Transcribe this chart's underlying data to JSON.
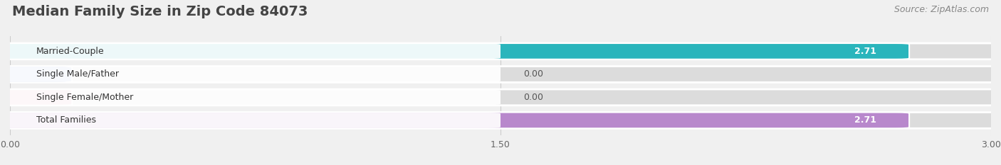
{
  "title": "Median Family Size in Zip Code 84073",
  "source": "Source: ZipAtlas.com",
  "categories": [
    "Married-Couple",
    "Single Male/Father",
    "Single Female/Mother",
    "Total Families"
  ],
  "values": [
    2.71,
    0.0,
    0.0,
    2.71
  ],
  "bar_colors": [
    "#2ab5bc",
    "#a8b8e8",
    "#f0a8b8",
    "#b888cc"
  ],
  "xlim": [
    0,
    3.0
  ],
  "xticks": [
    0.0,
    1.5,
    3.0
  ],
  "xtick_labels": [
    "0.00",
    "1.50",
    "3.00"
  ],
  "background_color": "#f0f0f0",
  "bar_background_color": "#dcdcdc",
  "title_fontsize": 14,
  "source_fontsize": 9,
  "bar_height": 0.62,
  "value_label_fontsize": 9,
  "category_label_fontsize": 9,
  "bar_gap": 0.38
}
